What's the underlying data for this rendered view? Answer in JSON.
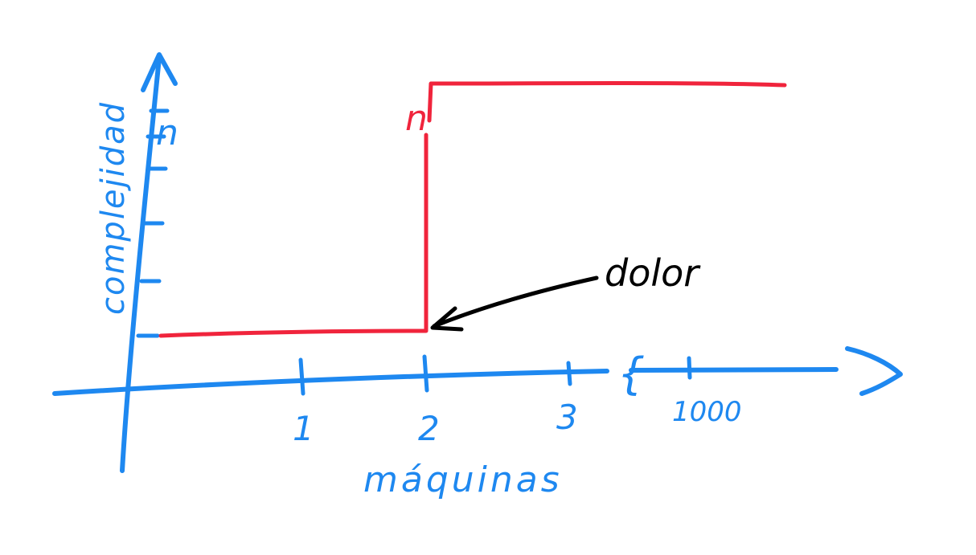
{
  "colors": {
    "axis": "#1e88f0",
    "series": "#f0243c",
    "annotation": "#000000",
    "background": "#ffffff"
  },
  "chart_data": {
    "type": "line",
    "xlabel": "máquinas",
    "ylabel": "complejidad",
    "x_tick_labels": [
      "1",
      "2",
      "3",
      "1000"
    ],
    "y_tick_labels": [
      "n"
    ],
    "axis_break_marker": "{",
    "series": [
      {
        "points": [
          {
            "x": "0",
            "y": "1"
          },
          {
            "x": "2",
            "y": "1"
          },
          {
            "x": "2",
            "y": "n"
          },
          {
            "x": "1000",
            "y": "n"
          }
        ]
      }
    ],
    "series_label": "n",
    "annotations": [
      {
        "text": "dolor",
        "points_to": {
          "x": "2",
          "y": "1"
        }
      }
    ],
    "grid": false,
    "legend": "none"
  }
}
